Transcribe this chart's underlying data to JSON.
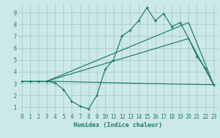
{
  "xlabel": "Humidex (Indice chaleur)",
  "bg_color": "#cce8e8",
  "grid_color": "#aacfcf",
  "line_color": "#1a7a6e",
  "xlim": [
    -0.5,
    23.5
  ],
  "ylim": [
    0.5,
    9.7
  ],
  "xticks": [
    0,
    1,
    2,
    3,
    4,
    5,
    6,
    7,
    8,
    9,
    10,
    11,
    12,
    13,
    14,
    15,
    16,
    17,
    18,
    19,
    20,
    21,
    22,
    23
  ],
  "yticks": [
    1,
    2,
    3,
    4,
    5,
    6,
    7,
    8,
    9
  ],
  "line1_x": [
    0,
    1,
    2,
    3,
    4,
    5,
    6,
    7,
    8,
    9,
    10,
    11,
    12,
    13,
    14,
    15,
    16,
    17,
    18,
    19,
    20,
    21,
    22,
    23
  ],
  "line1_y": [
    3.2,
    3.2,
    3.2,
    3.2,
    3.05,
    2.5,
    1.5,
    1.1,
    0.85,
    2.0,
    4.2,
    5.0,
    7.0,
    7.5,
    8.3,
    9.4,
    8.3,
    8.9,
    7.8,
    8.15,
    6.8,
    5.3,
    4.3,
    2.9
  ],
  "line2_x": [
    0,
    3,
    15,
    23
  ],
  "line2_y": [
    3.2,
    3.2,
    3.0,
    2.9
  ],
  "line3_x": [
    0,
    3,
    20,
    23
  ],
  "line3_y": [
    3.2,
    3.2,
    6.8,
    2.9
  ],
  "line4_x": [
    0,
    3,
    20,
    23
  ],
  "line4_y": [
    3.2,
    3.2,
    8.15,
    2.9
  ]
}
